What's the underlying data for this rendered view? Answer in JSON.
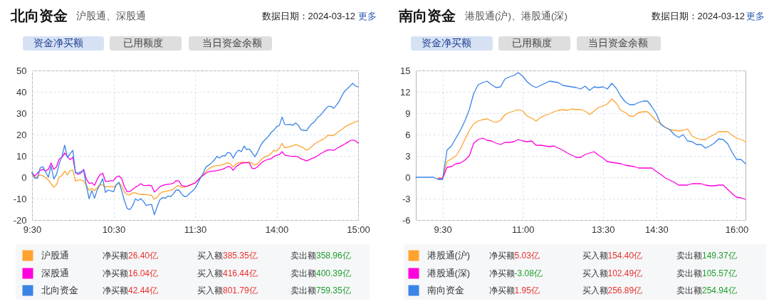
{
  "chart_data": [
    {
      "type": "line",
      "title": "北向资金",
      "subtitle": "沪股通、深股通",
      "annotations": [
        "数据日期：2024-03-12",
        "更多",
        "资金净买额",
        "已用额度",
        "当日资金余额",
        "净买额",
        "26.40亿",
        "买入额",
        "385.35亿",
        "卖出额",
        "358.96亿",
        "净买额",
        "16.04亿",
        "买入额",
        "416.44亿",
        "卖出额",
        "400.39亿",
        "净买额",
        "42.44亿",
        "买入额",
        "801.79亿",
        "卖出额",
        "759.35亿"
      ],
      "categories": [
        "9:30",
        null,
        null,
        null,
        null,
        null,
        null,
        null,
        null,
        null,
        null,
        null,
        null,
        null,
        null,
        null,
        null,
        null,
        null,
        null,
        null,
        null,
        null,
        null,
        null,
        null,
        null,
        null,
        null,
        null,
        "10:30",
        null,
        null,
        null,
        null,
        null,
        null,
        null,
        null,
        null,
        null,
        null,
        null,
        null,
        null,
        null,
        null,
        null,
        null,
        null,
        null,
        null,
        null,
        null,
        null,
        null,
        null,
        null,
        null,
        null,
        "11:30",
        null,
        null,
        null,
        null,
        null,
        null,
        null,
        null,
        null,
        null,
        null,
        null,
        null,
        null,
        null,
        null,
        null,
        null,
        null,
        null,
        null,
        null,
        null,
        null,
        null,
        null,
        null,
        null,
        null,
        "14:00",
        null,
        null,
        null,
        null,
        null,
        null,
        null,
        null,
        null,
        null,
        null,
        null,
        null,
        null,
        null,
        null,
        null,
        null,
        null,
        null,
        null,
        null,
        null,
        null,
        null,
        null,
        null,
        null,
        null,
        "15:00"
      ],
      "ylim": [
        -20,
        50
      ],
      "yticks": [
        -20,
        -10,
        0,
        10,
        20,
        30,
        40,
        50
      ],
      "grid": true,
      "legend": "bottom",
      "line_style": "solid",
      "series": [
        {
          "name": "沪股通",
          "color": "#ffa32e",
          "values": [
            1.4,
            -0.5,
            0.5,
            1.1,
            0.7,
            -0.2,
            -1.3,
            -3,
            -4.7,
            -3.4,
            0.2,
            0.7,
            2.9,
            1.1,
            3.1,
            3.5,
            -1.8,
            -1.3,
            -1.3,
            -1.7,
            -3.8,
            -6.1,
            -5.2,
            -6.3,
            -4.8,
            -3.4,
            -3.7,
            -4.5,
            -4.4,
            -4.3,
            -4.5,
            -3.6,
            -2.8,
            -4.1,
            -7,
            -8.1,
            -8.2,
            -7.3,
            -7.3,
            -7.9,
            -8,
            -8,
            -8.1,
            -8.3,
            -8.5,
            -10.3,
            -9.3,
            -7.7,
            -6.9,
            -6.6,
            -6.4,
            -6.1,
            -5.6,
            -4.4,
            -3.9,
            -4.7,
            -4.6,
            -4.2,
            -3.7,
            -3.1,
            -2.5,
            -1.2,
            0.1,
            1.4,
            2.7,
            3.9,
            4.7,
            5.2,
            5.4,
            5.5,
            5.9,
            6.3,
            6.8,
            6.4,
            4.8,
            6.1,
            6.8,
            7,
            7,
            6.8,
            7.2,
            6.5,
            5.7,
            6.3,
            7.9,
            9,
            9.7,
            10.2,
            11.2,
            12.6,
            12.3,
            13.6,
            15.9,
            13.8,
            14.1,
            14.4,
            14.7,
            15.3,
            14.9,
            14.2,
            13.7,
            12.7,
            13.4,
            14.5,
            15.6,
            16.4,
            17.1,
            17.7,
            18.7,
            19.8,
            19.5,
            19.6,
            20.6,
            21.5,
            22.4,
            23.4,
            24.3,
            24.8,
            25.4,
            26,
            26.4
          ]
        },
        {
          "name": "深股通",
          "color": "#ff00dc",
          "values": [
            2,
            0.6,
            1.9,
            3.2,
            3.7,
            2.9,
            3.7,
            6.7,
            3.7,
            4.9,
            8.6,
            9.3,
            11.4,
            9.7,
            8.2,
            9.4,
            2.3,
            1.4,
            2,
            3.7,
            -0.9,
            -2.9,
            -2.6,
            -3.8,
            -0.9,
            1.2,
            1.9,
            -1.9,
            -1.9,
            -1.6,
            -1.6,
            0.1,
            0.6,
            -0.6,
            -4.5,
            -6.7,
            -6.7,
            -5.7,
            -4.7,
            -3.9,
            -3,
            -3.8,
            -3.9,
            -3.7,
            -4,
            -6.9,
            -5.8,
            -4.5,
            -3.8,
            -3.5,
            -3.3,
            -3.1,
            -2.8,
            -1.6,
            -1.7,
            -3.7,
            -4.2,
            -4.2,
            -3.7,
            -3.2,
            -2.7,
            -1.4,
            -0.1,
            0.9,
            1.9,
            2.6,
            2.9,
            2.9,
            3.1,
            3.4,
            3.7,
            4.3,
            5,
            4.9,
            3.3,
            4.9,
            5.8,
            6.5,
            6.8,
            6.9,
            6.7,
            4.1,
            4.1,
            4.9,
            6.3,
            7.3,
            8,
            8.4,
            8.7,
            9.7,
            10.3,
            10.6,
            12,
            10.4,
            10.1,
            9.9,
            9.8,
            9.9,
            9.5,
            8.6,
            8.2,
            7.6,
            8.2,
            8.8,
            9.3,
            10,
            10.9,
            11.6,
            12.3,
            12.9,
            12.8,
            12.6,
            13.4,
            14.1,
            14.8,
            15.5,
            16.3,
            17.1,
            17.5,
            17.1,
            16
          ]
        },
        {
          "name": "北向资金",
          "color": "#3a84e6",
          "values": [
            2.5,
            -0.4,
            -0.5,
            4.4,
            5,
            2.5,
            0,
            5.3,
            -0.8,
            1.4,
            6.3,
            9.8,
            15,
            9.3,
            11,
            12.6,
            2,
            2,
            2.6,
            3.1,
            -4,
            -10,
            -6.2,
            -9.8,
            -5.8,
            -3.4,
            -0.7,
            -7.1,
            -6,
            -6.4,
            -6.7,
            -3.5,
            -2.3,
            -6.4,
            -11,
            -14.6,
            -15.1,
            -13.4,
            -10.1,
            -10.9,
            -10,
            -11.3,
            -13.2,
            -12.9,
            -12.7,
            -17.5,
            -13.9,
            -10.6,
            -9.5,
            -9.8,
            -8.8,
            -9,
            -7.8,
            -6,
            -6,
            -7.8,
            -9,
            -8.8,
            -7.5,
            -6.5,
            -5.2,
            -2.7,
            -0.4,
            2.1,
            4.8,
            5.7,
            6.7,
            7.9,
            9.8,
            9,
            10,
            10,
            11.6,
            11.3,
            9,
            11.3,
            12.7,
            12,
            14.6,
            13,
            13.2,
            11.5,
            9.6,
            11.8,
            14.6,
            16.6,
            17.9,
            19.2,
            21,
            22.1,
            23.7,
            24.3,
            28.2,
            24.7,
            24.6,
            24.8,
            24.3,
            25.4,
            24.3,
            22.2,
            22,
            21.8,
            23.7,
            25.1,
            26.1,
            27.9,
            28.9,
            30.4,
            32,
            33.2,
            33.2,
            32.3,
            33.8,
            35.5,
            38.1,
            40.3,
            41.4,
            42.7,
            44,
            42.7,
            42.4
          ]
        }
      ]
    },
    {
      "type": "line",
      "title": "南向资金",
      "subtitle": "港股通(沪)、港股通(深)",
      "annotations": [
        "数据日期：2024-03-12",
        "更多",
        "资金净买额",
        "已用额度",
        "当日资金余额",
        "净买额",
        "5.03亿",
        "买入额",
        "154.40亿",
        "卖出额",
        "149.37亿",
        "净买额",
        "-3.08亿",
        "买入额",
        "102.49亿",
        "卖出额",
        "105.57亿",
        "净买额",
        "1.95亿",
        "买入额",
        "256.89亿",
        "卖出额",
        "254.94亿"
      ],
      "categories": [
        null,
        null,
        null,
        null,
        null,
        null,
        "9:30",
        null,
        null,
        null,
        null,
        null,
        null,
        null,
        null,
        null,
        null,
        null,
        null,
        null,
        null,
        null,
        null,
        null,
        "11:00",
        null,
        null,
        null,
        null,
        null,
        null,
        null,
        null,
        null,
        null,
        null,
        null,
        null,
        null,
        null,
        null,
        null,
        "13:30",
        null,
        null,
        null,
        null,
        null,
        null,
        null,
        null,
        null,
        null,
        null,
        "14:30",
        null,
        null,
        null,
        null,
        null,
        null,
        null,
        null,
        null,
        null,
        null,
        null,
        null,
        null,
        null,
        null,
        null,
        "16:00",
        null,
        null
      ],
      "ylim": [
        -6,
        15
      ],
      "yticks": [
        -6,
        -3,
        0,
        3,
        6,
        9,
        12,
        15
      ],
      "grid": true,
      "legend": "bottom",
      "line_style": "solid",
      "series": [
        {
          "name": "港股通(沪)",
          "color": "#ffa32e",
          "values": [
            null,
            null,
            null,
            null,
            null,
            -0.1,
            -0.1,
            2.2,
            2.6,
            3,
            4,
            5.3,
            6.6,
            7.5,
            7.9,
            8.1,
            8.2,
            7.9,
            7.7,
            8,
            8.8,
            9.1,
            9.3,
            9.5,
            9.3,
            8.6,
            8.3,
            7.9,
            8.4,
            8.7,
            8.9,
            9.2,
            9.4,
            9.5,
            9.4,
            9.6,
            9.5,
            9.5,
            9.3,
            8.8,
            9.3,
            9.8,
            10,
            10.3,
            11,
            10.4,
            9.4,
            9.1,
            8.6,
            8.6,
            9.1,
            9.2,
            9.2,
            8.6,
            7.9,
            7.5,
            7,
            6.7,
            6.6,
            6.5,
            6.6,
            6.8,
            5.8,
            5.5,
            5.3,
            5.3,
            5.7,
            6,
            6.4,
            6.4,
            6.4,
            5.9,
            5.5,
            5.3,
            5
          ]
        },
        {
          "name": "港股通(深)",
          "color": "#ff00dc",
          "values": [
            null,
            null,
            null,
            null,
            null,
            -0.2,
            -0.2,
            1.4,
            1.5,
            1.9,
            2,
            2.4,
            3,
            4.8,
            5.3,
            5.5,
            5.2,
            5.1,
            4.8,
            4.6,
            4.9,
            4.9,
            5,
            5.3,
            5.1,
            5,
            5.1,
            4.5,
            4.5,
            4.4,
            4.3,
            4.4,
            4.1,
            3.8,
            3.4,
            3.1,
            2.8,
            2.8,
            3.2,
            3.4,
            3.6,
            3.1,
            2.7,
            2.2,
            2.1,
            2,
            1.9,
            1.7,
            1.6,
            1.5,
            1.3,
            1.3,
            1.3,
            1.3,
            0.8,
            0.4,
            -0.1,
            -0.4,
            -0.7,
            -1.1,
            -1.1,
            -1.1,
            -0.9,
            -0.9,
            -0.9,
            -1.1,
            -1.2,
            -1.2,
            -1.1,
            -1.1,
            -1.7,
            -2.3,
            -2.8,
            -2.9,
            -3.1
          ]
        },
        {
          "name": "南向资金",
          "color": "#3a84e6",
          "values": [
            0,
            0,
            0,
            0,
            0,
            -0.3,
            -0.3,
            3.8,
            4.4,
            5.5,
            6.6,
            7.9,
            9.5,
            11.8,
            13,
            13.3,
            13.5,
            13,
            12.6,
            12.7,
            13.8,
            14.1,
            14.3,
            14.7,
            14.2,
            13.4,
            12.9,
            12.6,
            12.9,
            13.2,
            13.5,
            13.4,
            13.3,
            12.9,
            12.8,
            12.7,
            12.6,
            12.4,
            12.8,
            12.2,
            12.7,
            12.6,
            12.7,
            12.4,
            13.2,
            12.5,
            11.4,
            10.6,
            10.2,
            10.2,
            10.5,
            10.7,
            10.7,
            9.9,
            8.9,
            7.4,
            7,
            6.7,
            6,
            5.6,
            6,
            5.1,
            5,
            4.6,
            4.6,
            4.1,
            4.4,
            4.8,
            5.4,
            5.3,
            4.7,
            3.5,
            2.5,
            2.5,
            1.9
          ]
        }
      ]
    }
  ]
}
